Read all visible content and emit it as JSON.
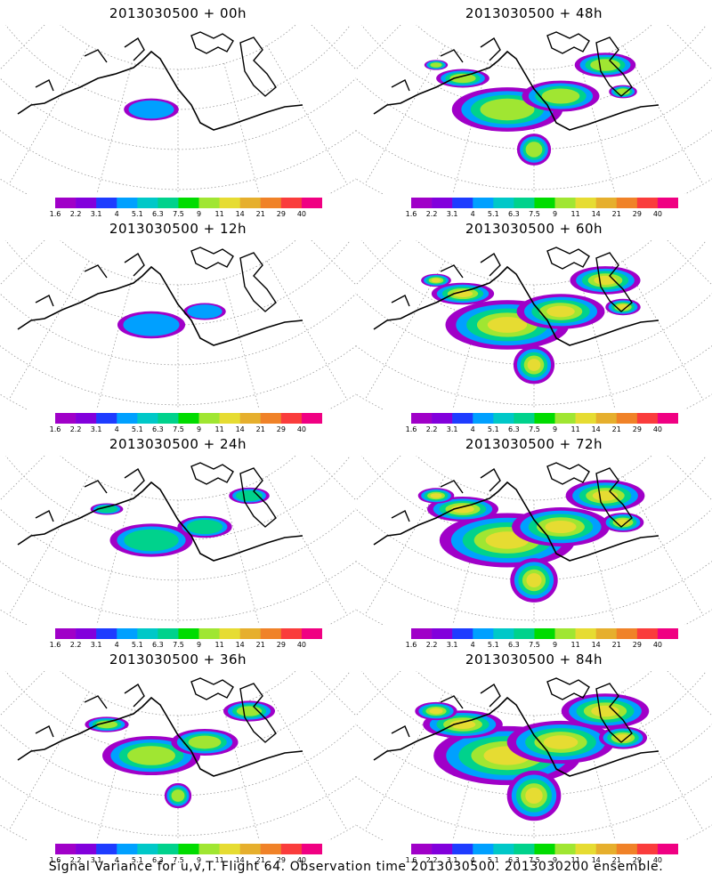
{
  "panels": [
    {
      "title": "2013030500 + 00h",
      "level": 0.1
    },
    {
      "title": "2013030500 + 48h",
      "level": 0.62
    },
    {
      "title": "2013030500 + 12h",
      "level": 0.22
    },
    {
      "title": "2013030500 + 60h",
      "level": 0.74
    },
    {
      "title": "2013030500 + 24h",
      "level": 0.36
    },
    {
      "title": "2013030500 + 72h",
      "level": 0.85
    },
    {
      "title": "2013030500 + 36h",
      "level": 0.5
    },
    {
      "title": "2013030500 + 84h",
      "level": 0.96
    }
  ],
  "colorbar": {
    "labels": [
      "1.6",
      "2.2",
      "3.1",
      "4",
      "5.1",
      "6.3",
      "7.5",
      "9",
      "11",
      "14",
      "21",
      "29",
      "40"
    ],
    "colors": [
      "#a000c8",
      "#8200dc",
      "#1e3cff",
      "#00a0ff",
      "#00c8c8",
      "#00d28c",
      "#00dc00",
      "#a0e632",
      "#e6dc32",
      "#e6af2d",
      "#f08228",
      "#fa3c3c",
      "#f00082"
    ]
  },
  "caption": "Signal Variance for u,v,T. Flight 64. Observation time 2013030500. 2013030200 ensemble."
}
